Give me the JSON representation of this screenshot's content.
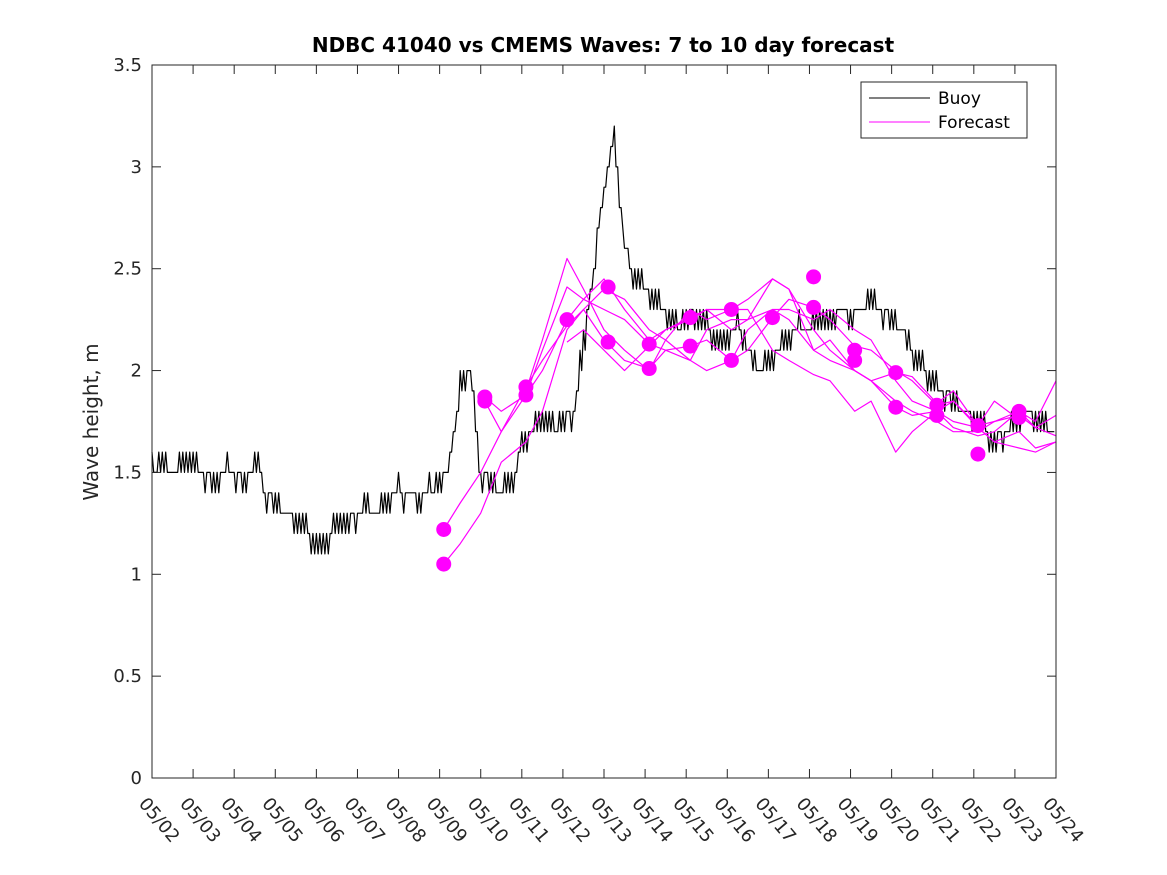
{
  "chart_data": {
    "type": "line",
    "title": "NDBC 41040 vs CMEMS Waves: 7 to 10 day forecast",
    "xlabel": "",
    "ylabel": "Wave height, m",
    "x_tick_labels": [
      "05/02",
      "05/03",
      "05/04",
      "05/05",
      "05/06",
      "05/07",
      "05/08",
      "05/09",
      "05/10",
      "05/11",
      "05/12",
      "05/13",
      "05/14",
      "05/15",
      "05/16",
      "05/17",
      "05/18",
      "05/19",
      "05/20",
      "05/21",
      "05/22",
      "05/23",
      "05/24"
    ],
    "xlim": [
      0,
      22
    ],
    "ylim": [
      0,
      3.5
    ],
    "y_ticks": [
      0,
      0.5,
      1,
      1.5,
      2,
      2.5,
      3,
      3.5
    ],
    "y_tick_labels": [
      "0",
      "0.5",
      "1",
      "1.5",
      "2",
      "2.5",
      "3",
      "3.5"
    ],
    "legend": {
      "position": "top-right",
      "entries": [
        {
          "label": "Buoy",
          "color": "#000000"
        },
        {
          "label": "Forecast",
          "color": "#ff00ff"
        }
      ]
    },
    "series": [
      {
        "name": "Buoy",
        "color": "#000000",
        "x": [
          0,
          0.25,
          0.5,
          0.75,
          1,
          1.25,
          1.5,
          1.75,
          2,
          2.25,
          2.5,
          2.75,
          3,
          3.25,
          3.5,
          3.75,
          4,
          4.25,
          4.5,
          4.75,
          5,
          5.25,
          5.5,
          5.75,
          6,
          6.25,
          6.5,
          6.75,
          7,
          7.25,
          7.5,
          7.75,
          8,
          8.25,
          8.5,
          8.75,
          9,
          9.25,
          9.5,
          9.75,
          10,
          10.25,
          10.5,
          10.75,
          11,
          11.25,
          11.5,
          11.75,
          12,
          12.25,
          12.5,
          12.75,
          13,
          13.25,
          13.5,
          13.75,
          14,
          14.25,
          14.5,
          14.75,
          15,
          15.25,
          15.5,
          15.75,
          16,
          16.25,
          16.5,
          16.75,
          17,
          17.25,
          17.5,
          17.75,
          18,
          18.25,
          18.5,
          18.75,
          19,
          19.25,
          19.5,
          19.75,
          20,
          20.25,
          20.5,
          20.75,
          21,
          21.25,
          21.5,
          21.75
        ],
        "values": [
          1.5,
          1.55,
          1.5,
          1.55,
          1.55,
          1.5,
          1.45,
          1.5,
          1.5,
          1.45,
          1.55,
          1.4,
          1.35,
          1.3,
          1.25,
          1.2,
          1.15,
          1.15,
          1.25,
          1.25,
          1.3,
          1.3,
          1.3,
          1.35,
          1.4,
          1.4,
          1.35,
          1.4,
          1.45,
          1.55,
          1.9,
          2.0,
          1.5,
          1.45,
          1.4,
          1.45,
          1.65,
          1.7,
          1.75,
          1.7,
          1.75,
          1.8,
          2.1,
          2.5,
          2.9,
          3.15,
          2.6,
          2.45,
          2.4,
          2.35,
          2.3,
          2.2,
          2.25,
          2.3,
          2.2,
          2.15,
          2.15,
          2.2,
          2.1,
          2.0,
          2.05,
          2.1,
          2.15,
          2.2,
          2.2,
          2.25,
          2.25,
          2.3,
          2.25,
          2.3,
          2.35,
          2.3,
          2.25,
          2.2,
          2.1,
          2.0,
          1.95,
          1.9,
          1.85,
          1.8,
          1.75,
          1.7,
          1.65,
          1.7,
          1.75,
          1.8,
          1.75,
          1.7
        ]
      },
      {
        "name": "Forecast",
        "color": "#ff00ff",
        "x": [
          7.1,
          7.5,
          8.0,
          8.5,
          9.1,
          9.5,
          10.1,
          10.5,
          11.0,
          11.5,
          12.1,
          12.5,
          13.1,
          13.5,
          14.1,
          14.5,
          15.1,
          15.5,
          16.1,
          16.5,
          17.1,
          17.5,
          18.1,
          18.5,
          19.1,
          19.5,
          20.1,
          20.5,
          21.1,
          21.5,
          22.0
        ],
        "values": [
          1.05,
          1.15,
          1.3,
          1.55,
          1.65,
          1.8,
          2.2,
          2.3,
          2.4,
          2.35,
          2.2,
          2.15,
          2.05,
          2.2,
          2.25,
          2.25,
          2.3,
          2.3,
          2.25,
          2.3,
          2.2,
          2.15,
          1.95,
          1.85,
          1.8,
          1.75,
          1.72,
          1.65,
          1.7,
          1.62,
          1.65
        ]
      },
      {
        "name": "Forecast",
        "color": "#ff00ff",
        "x": [
          7.1,
          7.5,
          8.0,
          8.5,
          9.1,
          9.5,
          10.1,
          10.5,
          11.0,
          11.5,
          12.1,
          12.5,
          13.1,
          13.5,
          14.1,
          14.5,
          15.1,
          15.5,
          16.1,
          16.5,
          17.1,
          17.5,
          18.1,
          18.5,
          19.1,
          19.5,
          20.1,
          20.5,
          21.1,
          21.5,
          22.0
        ],
        "values": [
          1.22,
          1.35,
          1.5,
          1.7,
          1.88,
          2.0,
          2.25,
          2.35,
          2.45,
          2.3,
          2.15,
          2.2,
          2.25,
          2.3,
          2.3,
          2.35,
          2.45,
          2.4,
          2.2,
          2.1,
          2.0,
          1.95,
          1.85,
          1.8,
          1.75,
          1.7,
          1.7,
          1.75,
          1.78,
          1.72,
          1.68
        ]
      },
      {
        "name": "Forecast",
        "color": "#ff00ff",
        "x": [
          8.1,
          8.5,
          9.1,
          9.5,
          10.1,
          10.5,
          11.0,
          11.5,
          12.1,
          12.5,
          13.1,
          13.5,
          14.1,
          14.5,
          15.1,
          15.5,
          16.1,
          16.5,
          17.1,
          17.5,
          18.1,
          18.5,
          19.1,
          19.5,
          20.1,
          20.5,
          21.1,
          21.5,
          22.0
        ],
        "values": [
          1.85,
          1.7,
          1.92,
          2.05,
          2.22,
          2.3,
          2.15,
          2.05,
          2.01,
          2.1,
          2.05,
          2.0,
          2.05,
          2.2,
          2.3,
          2.25,
          2.1,
          2.05,
          2.0,
          1.95,
          1.82,
          1.78,
          1.8,
          1.85,
          1.72,
          1.65,
          1.62,
          1.6,
          1.65
        ]
      },
      {
        "name": "Forecast",
        "color": "#ff00ff",
        "x": [
          8.1,
          8.5,
          9.1,
          9.5,
          10.1,
          10.5,
          11.0,
          11.5,
          12.1,
          12.5,
          13.1,
          13.5,
          14.1,
          14.5,
          15.1,
          15.5,
          16.1,
          16.5,
          17.1,
          17.5,
          18.1,
          18.5,
          19.1,
          19.5,
          20.1,
          20.5,
          21.1,
          21.5,
          22.0
        ],
        "values": [
          1.87,
          1.8,
          1.88,
          2.1,
          2.41,
          2.35,
          2.3,
          2.25,
          2.13,
          2.1,
          2.12,
          2.15,
          2.05,
          2.1,
          2.26,
          2.35,
          2.31,
          2.25,
          2.12,
          2.1,
          2.0,
          1.95,
          1.83,
          1.85,
          1.73,
          1.75,
          1.8,
          1.72,
          1.78
        ]
      },
      {
        "name": "Forecast",
        "color": "#ff00ff",
        "x": [
          9.1,
          9.5,
          10.1,
          10.5,
          11.0,
          11.5,
          12.1,
          12.5,
          13.1,
          13.5,
          14.1,
          14.5,
          15.1,
          15.5,
          16.1,
          16.5,
          17.1,
          17.5,
          18.1,
          18.5,
          19.1,
          19.5,
          20.1,
          20.5,
          21.1,
          21.5,
          22.0
        ],
        "values": [
          1.9,
          2.15,
          2.55,
          2.4,
          2.2,
          2.1,
          2.0,
          2.15,
          2.3,
          2.25,
          2.3,
          2.3,
          2.1,
          2.05,
          1.98,
          1.95,
          1.8,
          1.85,
          1.6,
          1.7,
          1.8,
          1.72,
          1.68,
          1.7,
          1.8,
          1.75,
          1.95
        ]
      },
      {
        "name": "Forecast",
        "color": "#ff00ff",
        "x": [
          10.1,
          10.5,
          11.0,
          11.5,
          12.1,
          12.5,
          13.1,
          13.5,
          14.1,
          14.5,
          15.1,
          15.5,
          16.1,
          16.5,
          17.1,
          17.5,
          18.1,
          18.5,
          19.1,
          19.5,
          20.1,
          20.5,
          21.1
        ],
        "values": [
          2.14,
          2.2,
          2.1,
          2.0,
          2.12,
          2.2,
          2.26,
          2.3,
          2.2,
          2.25,
          2.45,
          2.4,
          2.1,
          2.15,
          2.0,
          1.95,
          1.99,
          1.97,
          1.84,
          1.9,
          1.73,
          1.85,
          1.76
        ]
      }
    ],
    "forecast_markers": [
      {
        "x": 7.1,
        "y": 1.05
      },
      {
        "x": 7.1,
        "y": 1.22
      },
      {
        "x": 8.1,
        "y": 1.85
      },
      {
        "x": 8.1,
        "y": 1.87
      },
      {
        "x": 9.1,
        "y": 1.88
      },
      {
        "x": 9.1,
        "y": 1.92
      },
      {
        "x": 10.1,
        "y": 2.25
      },
      {
        "x": 11.1,
        "y": 2.14
      },
      {
        "x": 11.1,
        "y": 2.41
      },
      {
        "x": 12.1,
        "y": 2.01
      },
      {
        "x": 12.1,
        "y": 2.13
      },
      {
        "x": 13.1,
        "y": 2.12
      },
      {
        "x": 13.1,
        "y": 2.26
      },
      {
        "x": 14.1,
        "y": 2.05
      },
      {
        "x": 14.1,
        "y": 2.3
      },
      {
        "x": 15.1,
        "y": 2.26
      },
      {
        "x": 16.1,
        "y": 2.31
      },
      {
        "x": 16.1,
        "y": 2.46
      },
      {
        "x": 17.1,
        "y": 2.05
      },
      {
        "x": 17.1,
        "y": 2.1
      },
      {
        "x": 18.1,
        "y": 1.82
      },
      {
        "x": 18.1,
        "y": 1.99
      },
      {
        "x": 19.1,
        "y": 1.78
      },
      {
        "x": 19.1,
        "y": 1.83
      },
      {
        "x": 20.1,
        "y": 1.59
      },
      {
        "x": 20.1,
        "y": 1.73
      },
      {
        "x": 21.1,
        "y": 1.77
      },
      {
        "x": 21.1,
        "y": 1.8
      }
    ]
  }
}
